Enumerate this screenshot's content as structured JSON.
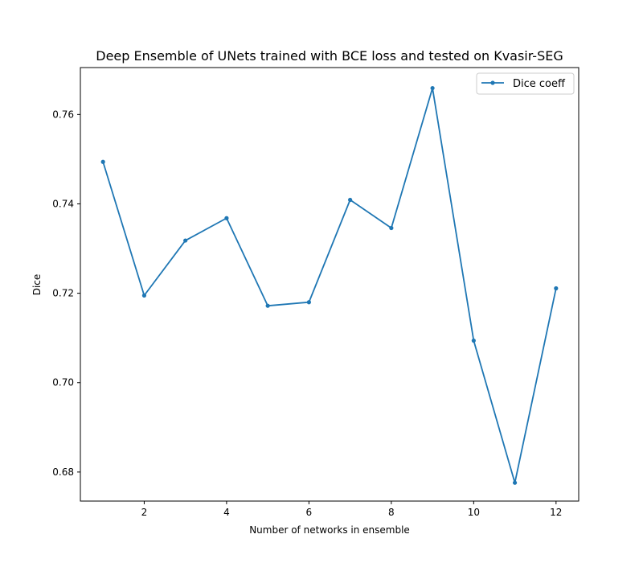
{
  "chart_data": {
    "type": "line",
    "title": "Deep Ensemble of UNets trained with BCE loss and tested on Kvasir-SEG",
    "xlabel": "Number of networks in ensemble",
    "ylabel": "Dice",
    "xlim": [
      0.45,
      12.55
    ],
    "ylim": [
      0.6735,
      0.7705
    ],
    "xticks": [
      2,
      4,
      6,
      8,
      10,
      12
    ],
    "xtick_labels": [
      "2",
      "4",
      "6",
      "8",
      "10",
      "12"
    ],
    "yticks": [
      0.68,
      0.7,
      0.72,
      0.74,
      0.76
    ],
    "ytick_labels": [
      "0.68",
      "0.70",
      "0.72",
      "0.74",
      "0.76"
    ],
    "grid": false,
    "legend_position": "top-right",
    "series": [
      {
        "name": "Dice coeff",
        "color": "#1f77b4",
        "marker": "dot",
        "x": [
          1,
          2,
          3,
          4,
          5,
          6,
          7,
          8,
          9,
          10,
          11,
          12
        ],
        "y": [
          0.7494,
          0.7195,
          0.7318,
          0.7368,
          0.7172,
          0.718,
          0.7409,
          0.7346,
          0.7659,
          0.7094,
          0.6776,
          0.7211
        ]
      }
    ]
  }
}
